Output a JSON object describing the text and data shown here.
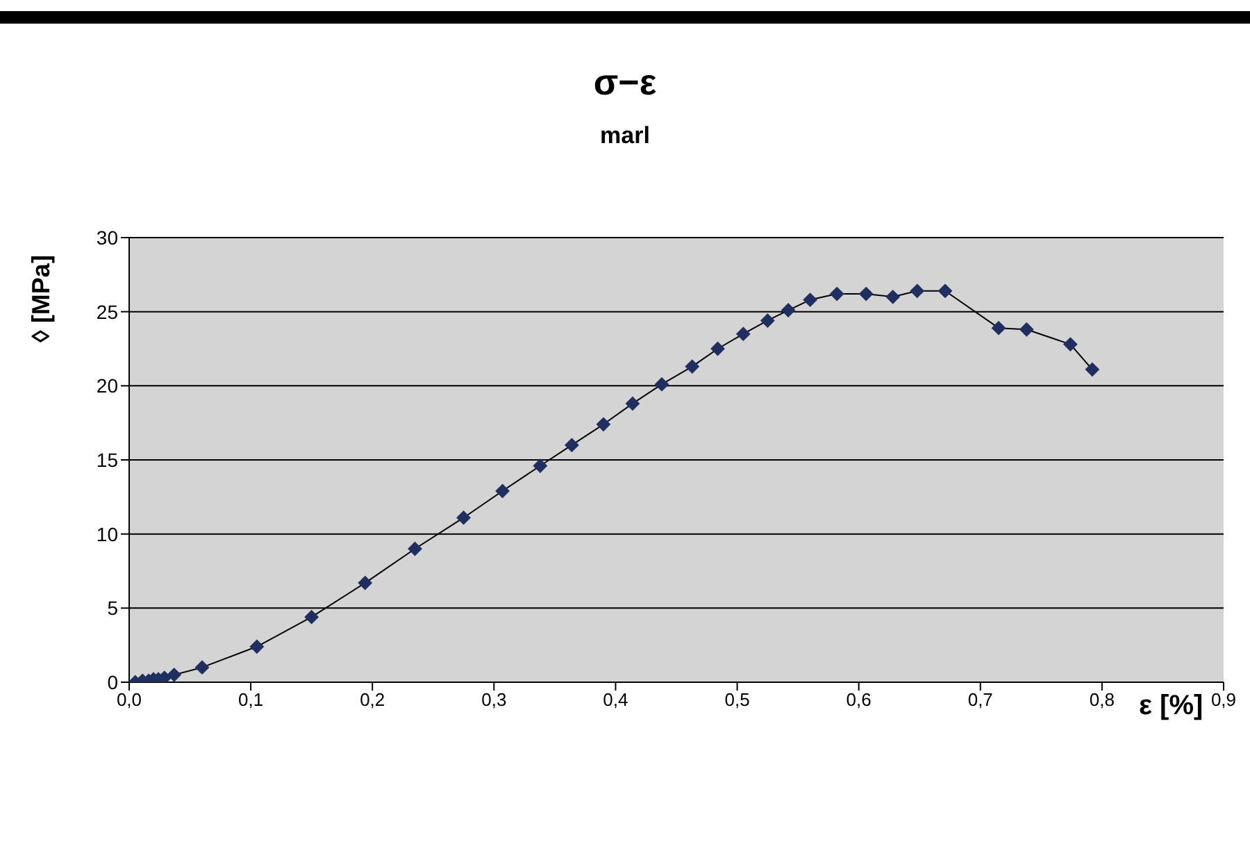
{
  "chart_data": {
    "type": "line",
    "title": "σ−ε",
    "subtitle": "marl",
    "xlabel": "ε [%]",
    "ylabel": "◊ [MPa]",
    "x": [
      0.005,
      0.011,
      0.016,
      0.02,
      0.024,
      0.029,
      0.037,
      0.06,
      0.105,
      0.15,
      0.194,
      0.235,
      0.275,
      0.307,
      0.338,
      0.364,
      0.39,
      0.414,
      0.438,
      0.463,
      0.484,
      0.505,
      0.525,
      0.542,
      0.56,
      0.582,
      0.606,
      0.628,
      0.648,
      0.671,
      0.715,
      0.738,
      0.774,
      0.792
    ],
    "series": [
      {
        "color": "#1f3060",
        "values": [
          0,
          0.1,
          0.1,
          0.2,
          0.2,
          0.3,
          0.5,
          1.0,
          2.4,
          4.4,
          6.7,
          9.0,
          11.1,
          12.9,
          14.6,
          16.0,
          17.4,
          18.8,
          20.1,
          21.3,
          22.5,
          23.5,
          24.4,
          25.1,
          25.8,
          26.2,
          26.2,
          26.0,
          26.4,
          26.4,
          23.9,
          23.8,
          22.8,
          21.1
        ]
      }
    ],
    "xlim": [
      0,
      0.9
    ],
    "xticks": [
      {
        "value": 0,
        "label": "0,0"
      },
      {
        "value": 0.1,
        "label": "0,1"
      },
      {
        "value": 0.2,
        "label": "0,2"
      },
      {
        "value": 0.3,
        "label": "0,3"
      },
      {
        "value": 0.4,
        "label": "0,4"
      },
      {
        "value": 0.5,
        "label": "0,5"
      },
      {
        "value": 0.6,
        "label": "0,6"
      },
      {
        "value": 0.7,
        "label": "0,7"
      },
      {
        "value": 0.8,
        "label": "0,8"
      },
      {
        "value": 0.9,
        "label": "0,9"
      }
    ],
    "ylim": [
      0,
      30
    ],
    "yticks": [
      0,
      5,
      10,
      15,
      20,
      25,
      30
    ],
    "grid": "y",
    "marker": "diamond",
    "line_style": "solid"
  }
}
